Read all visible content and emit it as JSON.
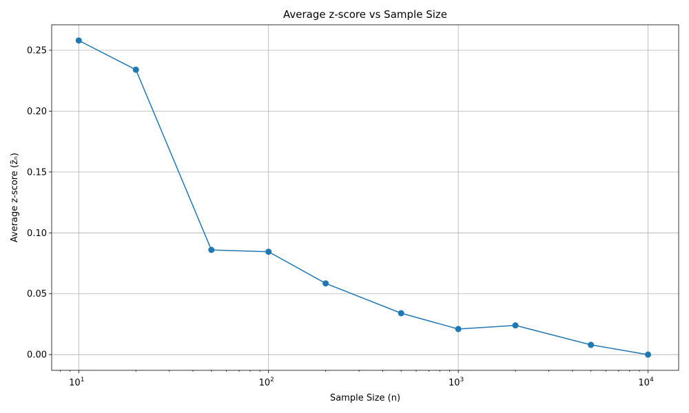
{
  "chart_data": {
    "type": "line",
    "title": "Average z-score vs Sample Size",
    "xlabel": "Sample Size (n)",
    "ylabel": "Average z-score (z̄ₙ)",
    "x_scale": "log",
    "xlim": [
      7.2,
      14500
    ],
    "ylim": [
      -0.0129,
      0.2709
    ],
    "x_ticks": [
      {
        "value": 10,
        "base": "10",
        "exp": "1"
      },
      {
        "value": 100,
        "base": "10",
        "exp": "2"
      },
      {
        "value": 1000,
        "base": "10",
        "exp": "3"
      },
      {
        "value": 10000,
        "base": "10",
        "exp": "4"
      }
    ],
    "y_ticks": [
      {
        "value": 0.0,
        "label": "0.00"
      },
      {
        "value": 0.05,
        "label": "0.05"
      },
      {
        "value": 0.1,
        "label": "0.10"
      },
      {
        "value": 0.15,
        "label": "0.15"
      },
      {
        "value": 0.2,
        "label": "0.20"
      },
      {
        "value": 0.25,
        "label": "0.25"
      }
    ],
    "grid": true,
    "series": [
      {
        "color": "#1f77b4",
        "marker": "circle",
        "x": [
          10,
          20,
          50,
          100,
          200,
          500,
          1000,
          2000,
          5000,
          10000
        ],
        "y": [
          0.258,
          0.234,
          0.086,
          0.0845,
          0.0585,
          0.034,
          0.021,
          0.024,
          0.008,
          0.0
        ]
      }
    ]
  }
}
